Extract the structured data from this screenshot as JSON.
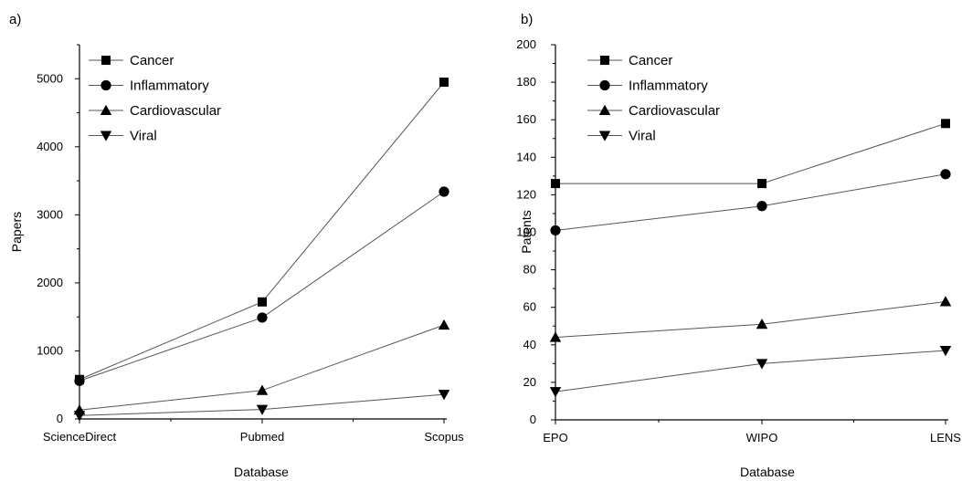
{
  "chart_data": [
    {
      "type": "line",
      "panel_label": "a)",
      "xlabel": "Database",
      "ylabel": "Papers",
      "categories": [
        "ScienceDirect",
        "Pubmed",
        "Scopus"
      ],
      "ylim": [
        0,
        5500
      ],
      "yticks": [
        0,
        1000,
        2000,
        3000,
        4000,
        5000
      ],
      "grid": false,
      "legend_position": "top-left",
      "series": [
        {
          "name": "Cancer",
          "marker": "square",
          "values": [
            580,
            1720,
            4950
          ]
        },
        {
          "name": "Inflammatory",
          "marker": "circle",
          "values": [
            560,
            1490,
            3340
          ]
        },
        {
          "name": "Cardiovascular",
          "marker": "triangle-up",
          "values": [
            130,
            420,
            1380
          ]
        },
        {
          "name": "Viral",
          "marker": "triangle-down",
          "values": [
            50,
            140,
            360
          ]
        }
      ]
    },
    {
      "type": "line",
      "panel_label": "b)",
      "xlabel": "Database",
      "ylabel": "Patents",
      "categories": [
        "EPO",
        "WIPO",
        "LENS"
      ],
      "ylim": [
        0,
        200
      ],
      "yticks": [
        0,
        20,
        40,
        60,
        80,
        100,
        120,
        140,
        160,
        180,
        200
      ],
      "grid": false,
      "legend_position": "top-left",
      "series": [
        {
          "name": "Cancer",
          "marker": "square",
          "values": [
            126,
            126,
            158
          ]
        },
        {
          "name": "Inflammatory",
          "marker": "circle",
          "values": [
            101,
            114,
            131
          ]
        },
        {
          "name": "Cardiovascular",
          "marker": "triangle-up",
          "values": [
            44,
            51,
            63
          ]
        },
        {
          "name": "Viral",
          "marker": "triangle-down",
          "values": [
            15,
            30,
            37
          ]
        }
      ]
    }
  ]
}
